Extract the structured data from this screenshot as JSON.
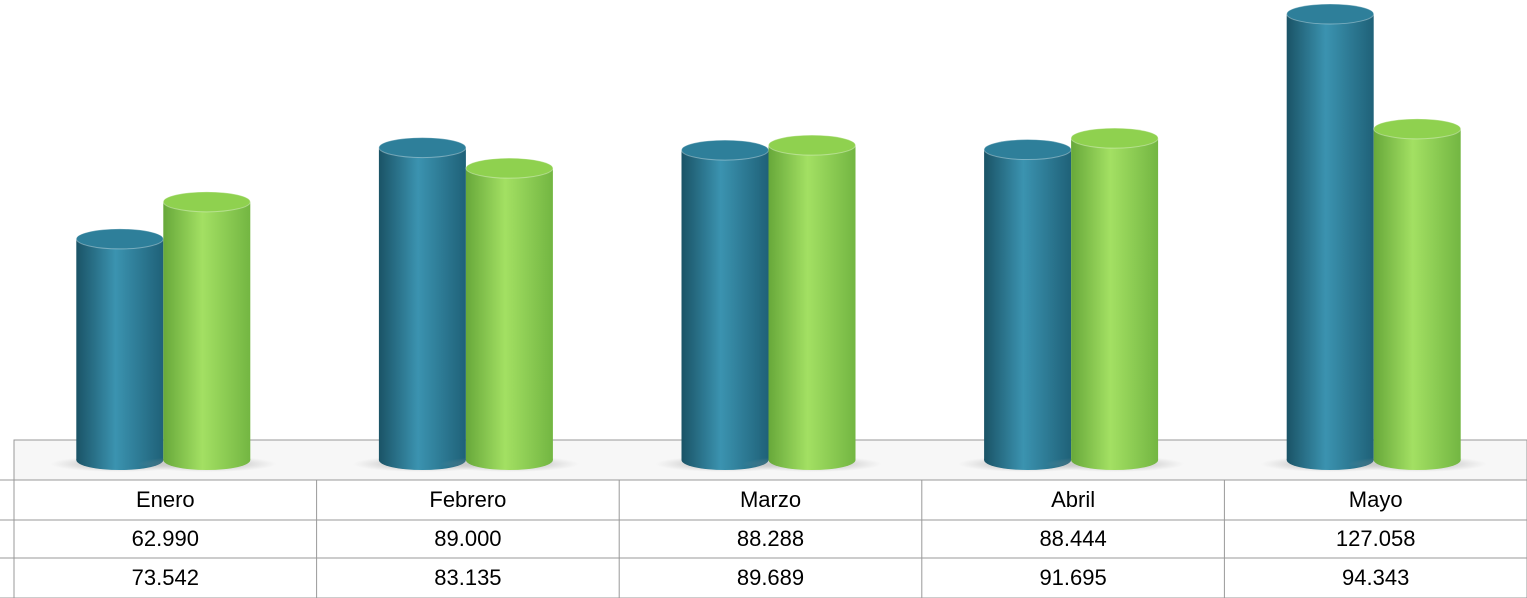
{
  "chart_data": {
    "type": "bar",
    "categories": [
      "Enero",
      "Febrero",
      "Marzo",
      "Abril",
      "Mayo"
    ],
    "series": [
      {
        "color": "#2e7f9a",
        "values": [
          62990,
          89000,
          88288,
          88444,
          127058
        ],
        "value_labels": [
          "62.990",
          "89.000",
          "88.288",
          "88.444",
          "127.058"
        ]
      },
      {
        "color": "#8fd14f",
        "values": [
          73542,
          83135,
          89689,
          91695,
          94343
        ],
        "value_labels": [
          "73.542",
          "83.135",
          "89.689",
          "91.695",
          "94.343"
        ]
      }
    ]
  }
}
